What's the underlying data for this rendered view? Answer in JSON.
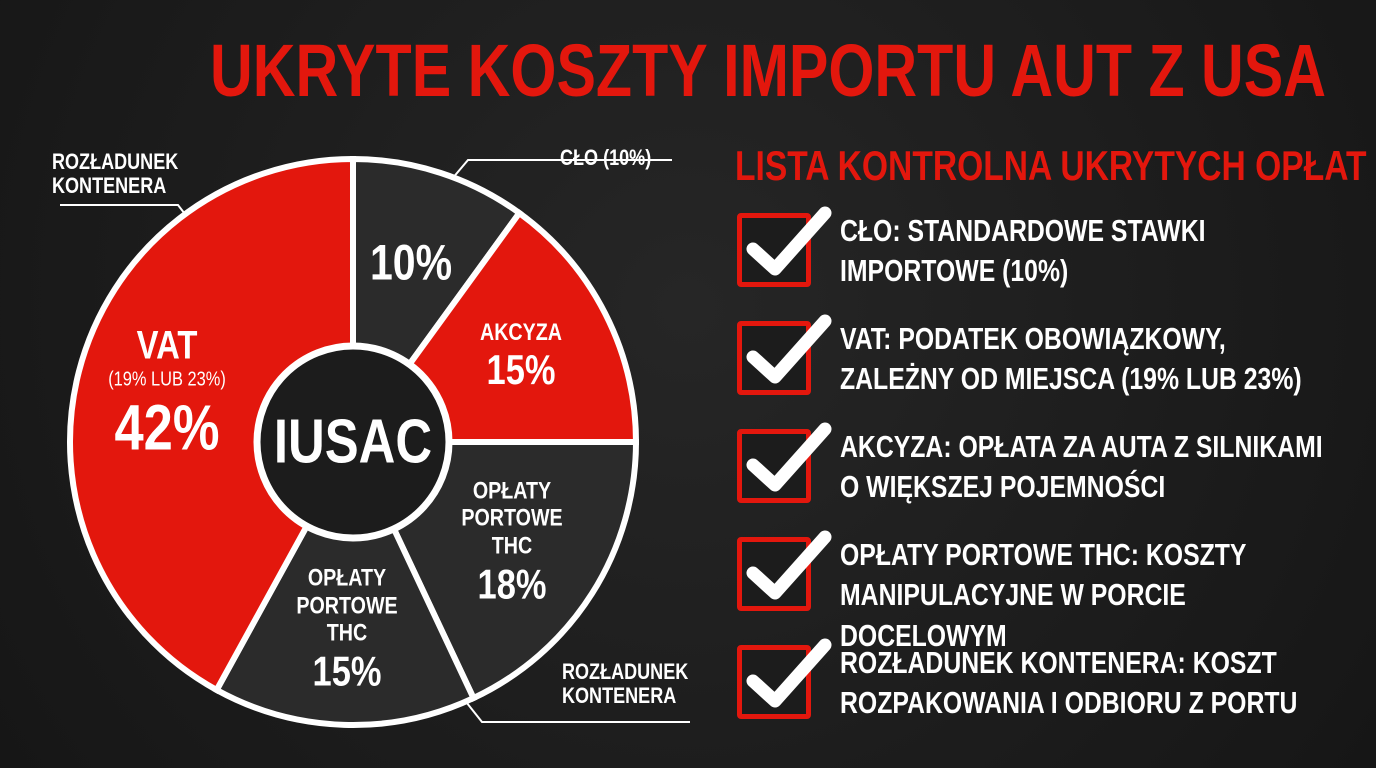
{
  "chart_data": {
    "type": "pie",
    "title": "UKRYTE KOSZTY IMPORTU AUT Z USA",
    "center_label": "IUSAC",
    "categories": [
      null,
      "AKCYZA",
      "OPŁATY PORTOWE THC",
      "OPŁATY PORTOWE THC",
      "VAT"
    ],
    "sublabels": [
      null,
      null,
      null,
      null,
      "(19% LUB 23%)"
    ],
    "values": [
      10,
      15,
      18,
      15,
      42
    ],
    "value_labels": [
      "10%",
      "15%",
      "18%",
      "15%",
      "42%"
    ],
    "colors": [
      "#2b2b2b",
      "#e3170d",
      "#2b2b2b",
      "#2b2b2b",
      "#e3170d"
    ],
    "annotations": [
      "CŁO (10%)",
      "ROZŁADUNEK KONTENERA",
      "ROZŁADUNEK KONTENERA"
    ]
  },
  "checklist": {
    "title": "LISTA KONTROLNA UKRYTYCH OPŁAT",
    "items": [
      "CŁO: STANDARDOWE STAWKI IMPORTOWE (10%)",
      "VAT: PODATEK OBOWIĄZKOWY, ZALEŻNY OD MIEJSCA (19% LUB 23%)",
      "AKCYZA: OPŁATA ZA AUTA Z SILNIKAMI O WIĘKSZEJ POJEMNOŚCI",
      "OPŁATY PORTOWE THC: KOSZTY MANIPULACYJNE W PORCIE DOCELOWYM",
      "ROZŁADUNEK KONTENERA: KOSZT ROZPAKOWANIA I ODBIORU Z PORTU"
    ]
  }
}
